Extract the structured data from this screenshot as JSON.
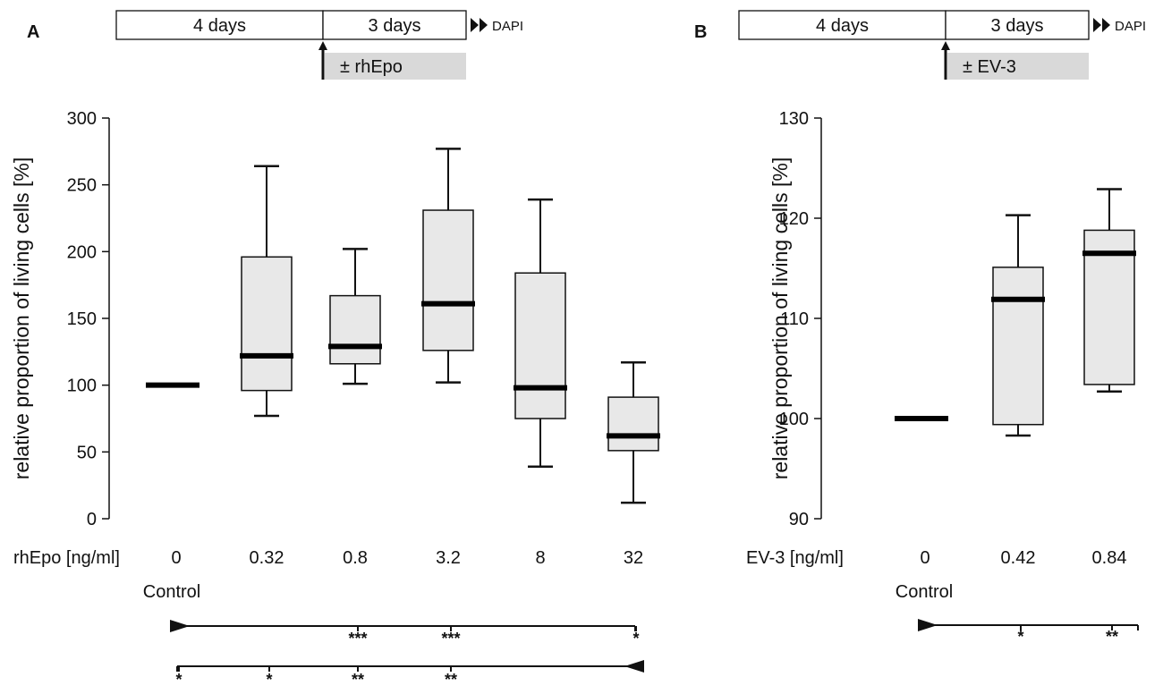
{
  "chart_data": [
    {
      "type": "box",
      "panel_label": "A",
      "timeline": {
        "phase1": "4 days",
        "phase2": "3 days",
        "treatment": "± rhEpo",
        "readout": "DAPI"
      },
      "ylabel": "relative proportion of living cells [%]",
      "ylim": [
        0,
        300
      ],
      "yticks": [
        0,
        50,
        100,
        150,
        200,
        250,
        300
      ],
      "x_axis_label": "rhEpo [ng/ml]",
      "control_label": "Control",
      "categories": [
        "0",
        "0.32",
        "0.8",
        "3.2",
        "8",
        "32"
      ],
      "boxes": [
        {
          "min": 100,
          "q1": 100,
          "median": 100,
          "q3": 100,
          "max": 100
        },
        {
          "min": 77,
          "q1": 96,
          "median": 122,
          "q3": 196,
          "max": 264
        },
        {
          "min": 101,
          "q1": 116,
          "median": 129,
          "q3": 167,
          "max": 202
        },
        {
          "min": 102,
          "q1": 126,
          "median": 161,
          "q3": 231,
          "max": 277
        },
        {
          "min": 39,
          "q1": 75,
          "median": 98,
          "q3": 184,
          "max": 239
        },
        {
          "min": 12,
          "q1": 51,
          "median": 62,
          "q3": 91,
          "max": 117
        }
      ],
      "significance": [
        {
          "reference": "0",
          "marks": [
            {
              "category": "0.8",
              "label": "***"
            },
            {
              "category": "3.2",
              "label": "***"
            },
            {
              "category": "32",
              "label": "*"
            }
          ]
        },
        {
          "reference": "32",
          "marks": [
            {
              "category": "0",
              "label": "*"
            },
            {
              "category": "0.32",
              "label": "*"
            },
            {
              "category": "0.8",
              "label": "**"
            },
            {
              "category": "3.2",
              "label": "**"
            }
          ]
        }
      ]
    },
    {
      "type": "box",
      "panel_label": "B",
      "timeline": {
        "phase1": "4 days",
        "phase2": "3 days",
        "treatment": "± EV-3",
        "readout": "DAPI"
      },
      "ylabel": "relative proportion of living cells [%]",
      "ylim": [
        90,
        130
      ],
      "yticks": [
        90,
        100,
        110,
        120,
        130
      ],
      "x_axis_label": "EV-3 [ng/ml]",
      "control_label": "Control",
      "categories": [
        "0",
        "0.42",
        "0.84"
      ],
      "boxes": [
        {
          "min": 100,
          "q1": 100,
          "median": 100,
          "q3": 100,
          "max": 100
        },
        {
          "min": 98.3,
          "q1": 99.4,
          "median": 111.9,
          "q3": 115.1,
          "max": 120.3
        },
        {
          "min": 102.7,
          "q1": 103.4,
          "median": 116.5,
          "q3": 118.8,
          "max": 122.9
        }
      ],
      "significance": [
        {
          "reference": "0",
          "marks": [
            {
              "category": "0.42",
              "label": "*"
            },
            {
              "category": "0.84",
              "label": "**"
            }
          ]
        }
      ]
    }
  ]
}
